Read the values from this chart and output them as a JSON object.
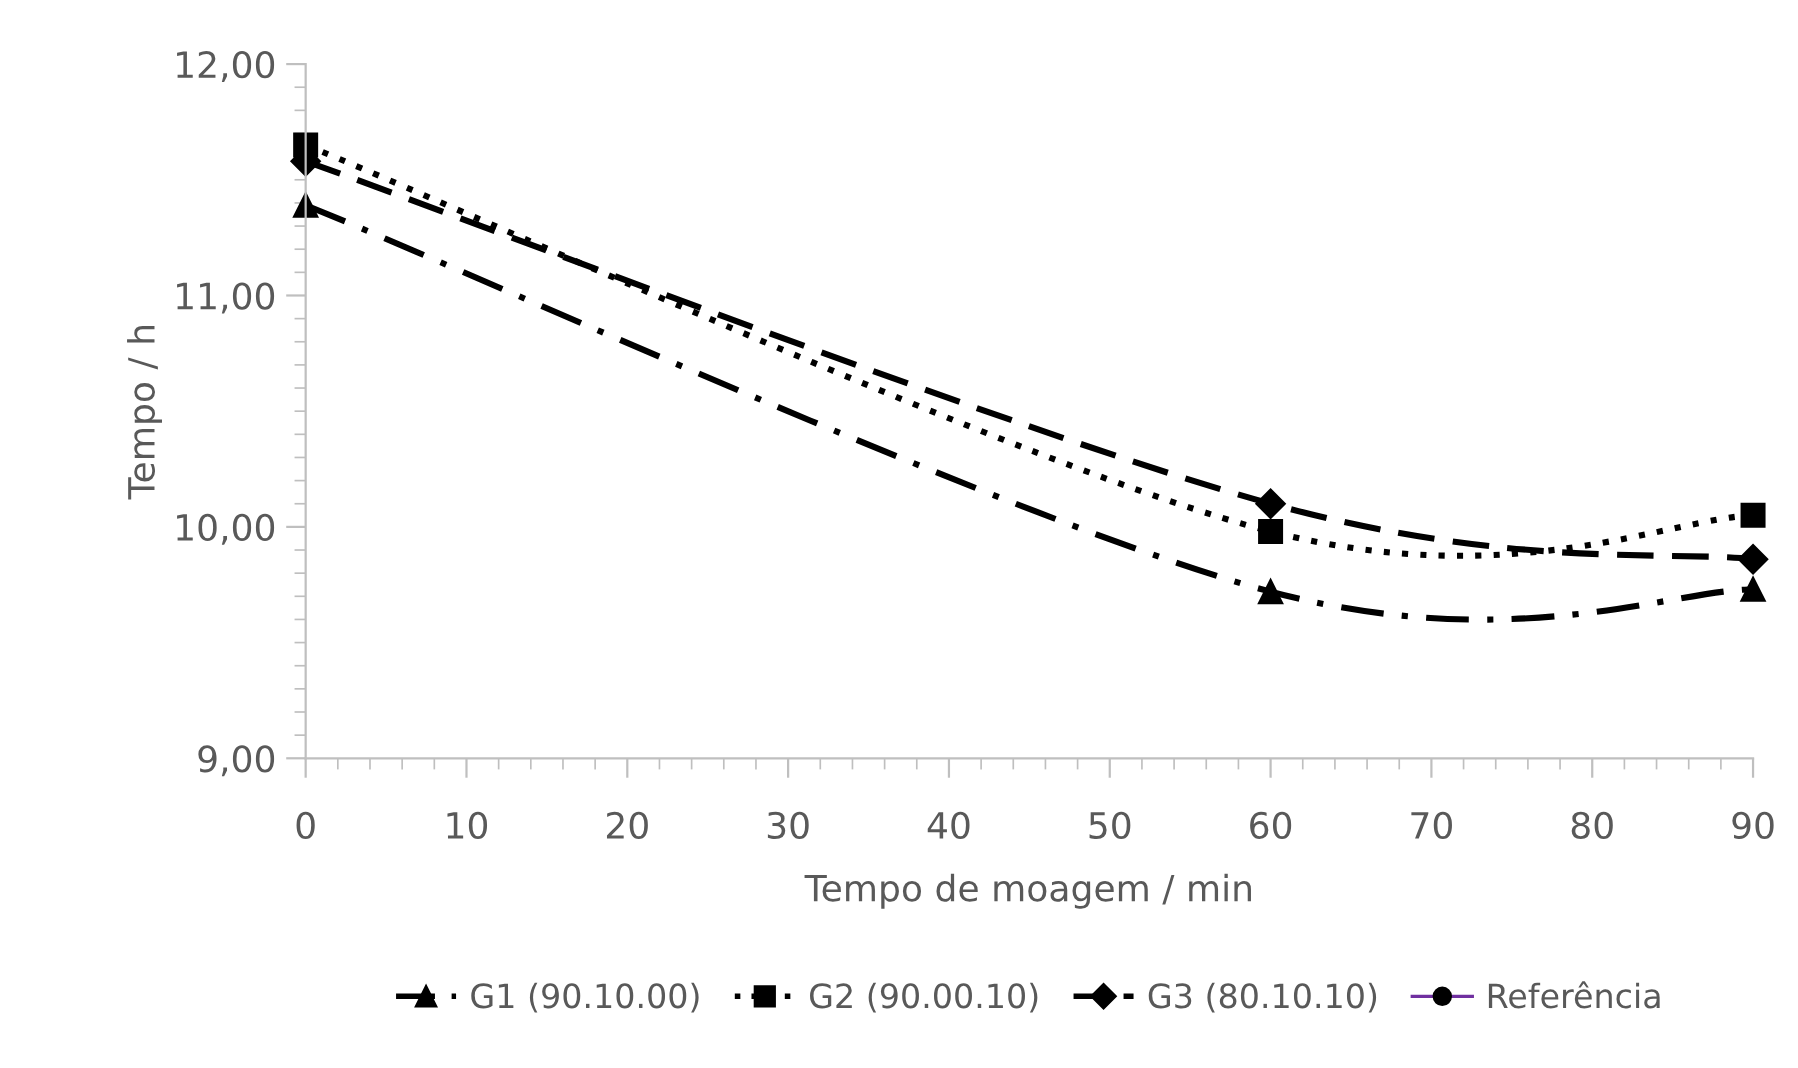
{
  "chart_data": {
    "type": "line",
    "xlabel": "Tempo de moagem / min",
    "ylabel": "Tempo / h",
    "x": [
      0,
      60,
      90
    ],
    "series": [
      {
        "name": "G1 (90.10.00)",
        "color": "#000000",
        "marker": "triangle",
        "line_style": "dashdot",
        "values": [
          11.39,
          9.72,
          9.73
        ]
      },
      {
        "name": "G2 (90.00.10)",
        "color": "#000000",
        "marker": "square",
        "line_style": "dotted",
        "values": [
          11.65,
          9.98,
          10.05
        ]
      },
      {
        "name": "G3 (80.10.10)",
        "color": "#000000",
        "marker": "diamond",
        "line_style": "dashed",
        "values": [
          11.58,
          10.1,
          9.86
        ]
      },
      {
        "name": "Referência",
        "color": "#7030a0",
        "marker": "circle",
        "line_style": "solid",
        "values": [
          null,
          null,
          null
        ]
      }
    ],
    "xlim": [
      0,
      90
    ],
    "xticks": [
      0,
      10,
      20,
      30,
      40,
      50,
      60,
      70,
      80,
      90
    ],
    "ylim": [
      9,
      12
    ],
    "yticks": [
      {
        "value": 9,
        "label": "9,00"
      },
      {
        "value": 10,
        "label": "10,00"
      },
      {
        "value": 11,
        "label": "11,00"
      },
      {
        "value": 12,
        "label": "12,00"
      }
    ],
    "grid": false,
    "legend": "bottom"
  }
}
